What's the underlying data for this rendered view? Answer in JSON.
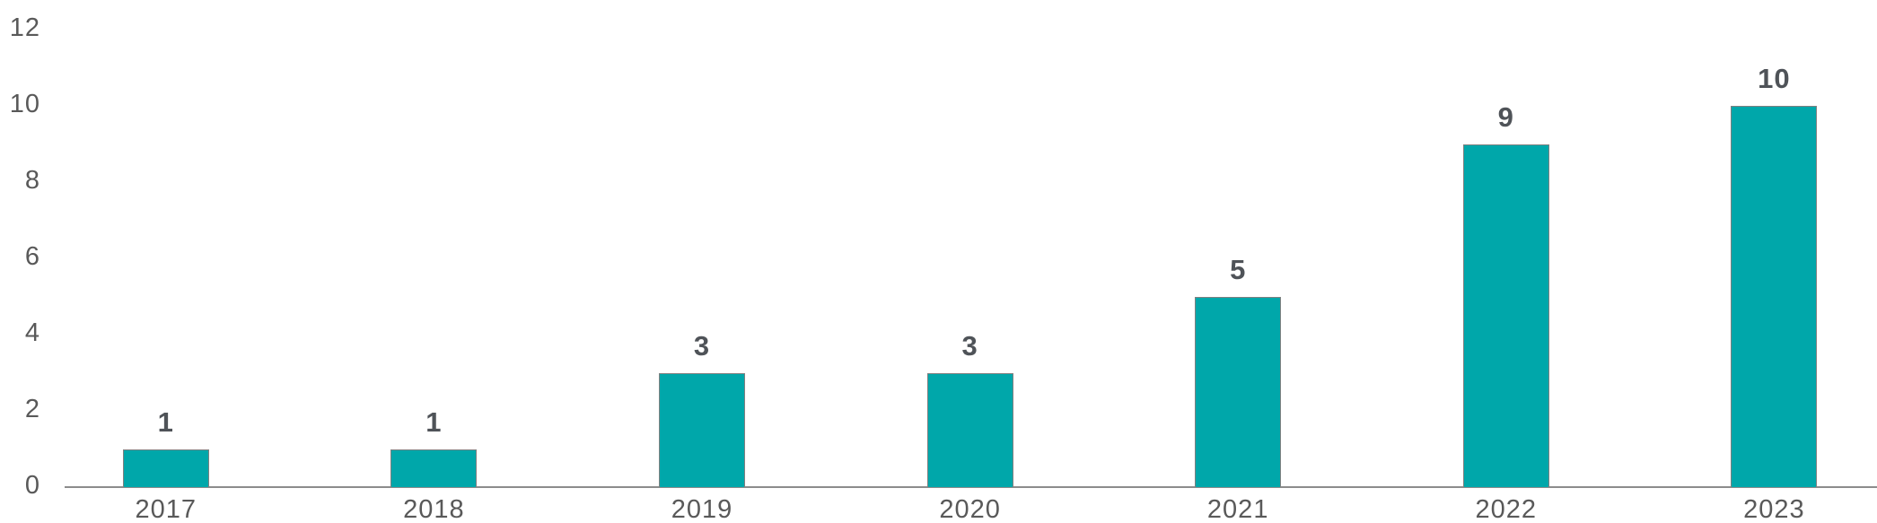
{
  "chart_data": {
    "type": "bar",
    "title": "",
    "xlabel": "",
    "ylabel": "",
    "categories": [
      "2017",
      "2018",
      "2019",
      "2020",
      "2021",
      "2022",
      "2023"
    ],
    "values": [
      1,
      1,
      3,
      3,
      5,
      9,
      10
    ],
    "data_labels": [
      "1",
      "1",
      "3",
      "3",
      "5",
      "9",
      "10"
    ],
    "ylim": [
      0,
      12
    ],
    "yticks": [
      12,
      10,
      8,
      6,
      4,
      2,
      0
    ],
    "grid": false,
    "legend": "none",
    "colors": {
      "bar_fill": "#00A7AA",
      "bar_border": "#808080",
      "axis_line": "#8C8C8C",
      "tick_label": "#595959",
      "data_label": "#4F5358",
      "background": "#FFFFFF"
    }
  }
}
